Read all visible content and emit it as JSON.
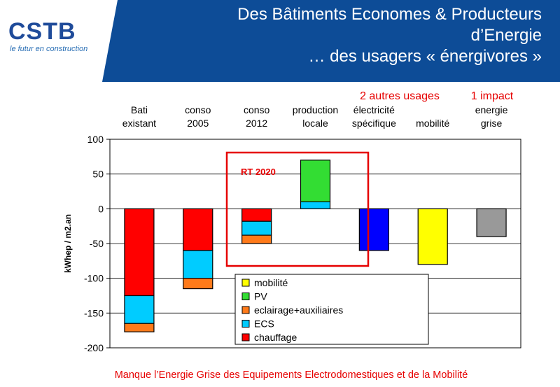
{
  "header": {
    "title_lines": [
      "Des Bâtiments Economes & Producteurs",
      "d’Energie",
      "… des usagers « énergivores »"
    ],
    "banner_color": "#0d4c97"
  },
  "logo": {
    "text": "CSTB",
    "tagline": "le futur en construction"
  },
  "chart_data": {
    "type": "bar",
    "stacked": true,
    "categories": [
      [
        "Bati",
        "existant"
      ],
      [
        "conso",
        "2005"
      ],
      [
        "conso",
        "2012"
      ],
      [
        "production",
        "locale"
      ],
      [
        "électricité",
        "spécifique"
      ],
      [
        "mobilité"
      ],
      [
        "energie",
        "grise"
      ]
    ],
    "series": [
      {
        "name": "chauffage",
        "color": "#ff0000",
        "values": [
          -125,
          -60,
          -18,
          0,
          0,
          0,
          0
        ]
      },
      {
        "name": "ECS",
        "color": "#00ccff",
        "values": [
          -40,
          -40,
          -20,
          10,
          0,
          0,
          0
        ]
      },
      {
        "name": "eclairage+auxiliaires",
        "color": "#ff7a1a",
        "values": [
          -12,
          -15,
          -12,
          0,
          0,
          0,
          0
        ]
      },
      {
        "name": "PV",
        "color": "#33dd33",
        "values": [
          0,
          0,
          0,
          60,
          0,
          0,
          0
        ]
      },
      {
        "name": "mobilité",
        "color": "#ffff00",
        "values": [
          0,
          0,
          0,
          0,
          0,
          -80,
          0
        ]
      },
      {
        "name": "",
        "color": "#0000ff",
        "values": [
          0,
          0,
          0,
          0,
          -60,
          0,
          0
        ]
      },
      {
        "name": "",
        "color": "#999999",
        "values": [
          0,
          0,
          0,
          0,
          0,
          0,
          -40
        ]
      }
    ],
    "ylabel": "kWhep / m2.an",
    "ylim": [
      -200,
      100
    ],
    "yticks": [
      100,
      50,
      0,
      -50,
      -100,
      -150,
      -200
    ],
    "grid": true,
    "legend_order": [
      "mobilité",
      "PV",
      "eclairage+auxiliaires",
      "ECS",
      "chauffage"
    ],
    "legend_position": "bottom-center",
    "annotations": [
      {
        "text": "RT 2020",
        "color": "#e60000"
      },
      {
        "text": "2 autres usages",
        "color": "#e60000"
      },
      {
        "text": "1 impact",
        "color": "#e60000"
      }
    ]
  },
  "footer": {
    "text": "Manque l’Energie Grise des Equipements Electrodomestiques et de la Mobilité"
  }
}
